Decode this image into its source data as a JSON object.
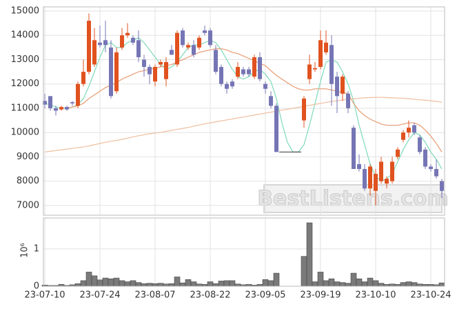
{
  "chart_data": {
    "type": "candlestick",
    "categories": [
      "23-07-10",
      null,
      null,
      null,
      null,
      null,
      null,
      null,
      null,
      null,
      "23-07-24",
      null,
      null,
      null,
      null,
      null,
      null,
      null,
      null,
      null,
      "23-08-07",
      null,
      null,
      null,
      null,
      null,
      null,
      null,
      null,
      null,
      "23-08-22",
      null,
      null,
      null,
      null,
      null,
      null,
      null,
      null,
      null,
      "23-09-05",
      null,
      null,
      null,
      null,
      null,
      null,
      null,
      null,
      null,
      "23-09-19",
      null,
      null,
      null,
      null,
      null,
      null,
      null,
      null,
      null,
      "23-10-10",
      null,
      null,
      null,
      null,
      null,
      null,
      null,
      null,
      null,
      "23-10-24",
      null,
      null
    ],
    "open": [
      11300,
      11500,
      11000,
      10950,
      11050,
      11250,
      11100,
      12000,
      12500,
      12800,
      13700,
      13800,
      13500,
      11700,
      13500,
      14000,
      13900,
      13800,
      13000,
      12700,
      12100,
      12800,
      12200,
      13400,
      12800,
      14200,
      13500,
      13600,
      13500,
      14200,
      14200,
      13400,
      12700,
      12000,
      12100,
      12300,
      12600,
      12600,
      12300,
      13100,
      12000,
      11500,
      11100,
      9200,
      9200,
      9200,
      9200,
      10500,
      12200,
      12600,
      12700,
      13300,
      13600,
      12300,
      11600,
      11600,
      10200,
      8700,
      8500,
      7700,
      7600,
      8000,
      7900,
      8000,
      9000,
      9700,
      10000,
      10300,
      9800,
      9300,
      8600,
      8500,
      8000
    ],
    "high": [
      11600,
      11500,
      11100,
      11100,
      11100,
      11300,
      12100,
      13000,
      14900,
      14300,
      14400,
      14600,
      13800,
      13500,
      14300,
      14500,
      14000,
      14200,
      13200,
      12800,
      12800,
      13000,
      13100,
      13600,
      14200,
      14300,
      13700,
      13800,
      14000,
      14400,
      14300,
      13600,
      12800,
      12100,
      12200,
      12900,
      12700,
      12700,
      13200,
      13300,
      12100,
      11700,
      11200,
      9200,
      9200,
      9200,
      9200,
      11500,
      13200,
      12900,
      14200,
      14200,
      14000,
      12500,
      12400,
      11700,
      10300,
      9100,
      8700,
      8700,
      8500,
      9000,
      8200,
      9000,
      9400,
      10100,
      10500,
      10400,
      9900,
      9400,
      8700,
      8900,
      8100
    ],
    "low": [
      11000,
      10900,
      10700,
      10900,
      10900,
      11100,
      11000,
      11900,
      12400,
      12700,
      13500,
      13300,
      11400,
      11600,
      13400,
      13900,
      13600,
      12900,
      12300,
      12000,
      11900,
      12700,
      11900,
      13200,
      12700,
      13500,
      13400,
      13100,
      13400,
      14000,
      13500,
      12400,
      11900,
      11600,
      11800,
      12200,
      12300,
      12300,
      12200,
      12100,
      11600,
      11000,
      9200,
      9200,
      9200,
      9200,
      9200,
      10200,
      12000,
      12500,
      12600,
      13200,
      11100,
      10800,
      11300,
      10800,
      8500,
      8400,
      7600,
      7400,
      7000,
      7900,
      7700,
      7900,
      8900,
      9600,
      9800,
      9900,
      9100,
      8500,
      8400,
      8100,
      7300
    ],
    "close": [
      11150,
      11000,
      10900,
      11050,
      10950,
      11200,
      12000,
      12500,
      14600,
      13800,
      13600,
      13600,
      11500,
      13300,
      14000,
      14100,
      13700,
      13100,
      12700,
      12400,
      12700,
      12900,
      12900,
      13200,
      14100,
      13600,
      13600,
      13200,
      13900,
      14100,
      13600,
      12500,
      12000,
      11800,
      11900,
      12700,
      12400,
      12400,
      13100,
      12200,
      11800,
      11100,
      9200,
      9200,
      9200,
      9200,
      9200,
      11400,
      12800,
      12650,
      13800,
      13700,
      12000,
      11500,
      12300,
      11000,
      8500,
      8500,
      7700,
      8600,
      8300,
      8800,
      8100,
      8800,
      9300,
      10000,
      10200,
      10000,
      9200,
      8600,
      8500,
      8200,
      7600
    ],
    "up_color": "#e0521f",
    "down_color": "#7575b5",
    "ylim": [
      6600,
      15170
    ],
    "yticks": [
      7000,
      8000,
      9000,
      10000,
      11000,
      12000,
      13000,
      14000,
      15000
    ],
    "grid": true,
    "series": [
      {
        "color": "#86dcbd",
        "values": [
          11200,
          11150,
          11050,
          11000,
          11000,
          11050,
          11150,
          11400,
          11900,
          12500,
          13100,
          13600,
          13700,
          13500,
          13500,
          13700,
          13800,
          13900,
          13700,
          13400,
          13100,
          12800,
          12600,
          12700,
          12900,
          13200,
          13500,
          13600,
          13600,
          13700,
          13800,
          13700,
          13400,
          13000,
          12600,
          12300,
          12200,
          12300,
          12500,
          12600,
          12400,
          12100,
          11400,
          10400,
          9600,
          9200,
          9200,
          9500,
          10300,
          11200,
          12100,
          12900,
          13000,
          12900,
          12500,
          12000,
          11300,
          10300,
          9500,
          8700,
          8200,
          8000,
          8100,
          8300,
          8800,
          9300,
          9700,
          10000,
          9900,
          9600,
          9200,
          8900,
          8500
        ]
      },
      {
        "color": "#e9a27c",
        "values": [
          null,
          null,
          null,
          null,
          11000,
          11050,
          11100,
          11200,
          11400,
          11550,
          11700,
          11850,
          11950,
          12050,
          12200,
          12300,
          12400,
          12500,
          12550,
          12600,
          12650,
          12700,
          12750,
          12800,
          12900,
          13000,
          13100,
          13200,
          13300,
          13350,
          13400,
          13450,
          13450,
          13400,
          13300,
          13250,
          13150,
          13050,
          12950,
          12850,
          12750,
          12550,
          12350,
          12200,
          12050,
          11900,
          11800,
          11750,
          11750,
          11800,
          11800,
          11800,
          11750,
          11700,
          11650,
          11600,
          11200,
          10900,
          10700,
          10550,
          10450,
          10350,
          10300,
          10300,
          10300,
          10350,
          10400,
          10400,
          10300,
          10100,
          9850,
          9550,
          9200
        ]
      },
      {
        "color": "#f0c2a4",
        "values": [
          9200,
          9230,
          9260,
          9290,
          9320,
          9350,
          9380,
          9410,
          9450,
          9500,
          9550,
          9600,
          9640,
          9680,
          9720,
          9770,
          9820,
          9870,
          9910,
          9950,
          9980,
          10010,
          10050,
          10090,
          10130,
          10170,
          10210,
          10260,
          10310,
          10360,
          10400,
          10440,
          10480,
          10520,
          10560,
          10600,
          10640,
          10680,
          10720,
          10760,
          10800,
          10840,
          10880,
          10920,
          10960,
          11000,
          11040,
          11080,
          11120,
          11160,
          11200,
          11240,
          11280,
          11310,
          11340,
          11370,
          11390,
          11410,
          11430,
          11440,
          11450,
          11450,
          11440,
          11430,
          11420,
          11410,
          11390,
          11370,
          11350,
          11330,
          11310,
          11280,
          11250
        ]
      }
    ],
    "volume": {
      "color": "#7a7a7a",
      "ylabel": "10⁶",
      "ylim": [
        0,
        1.83
      ],
      "yticks": [
        0,
        1
      ],
      "values": [
        0.03,
        0.02,
        0.02,
        0.05,
        0.02,
        0.04,
        0.07,
        0.15,
        0.38,
        0.28,
        0.17,
        0.22,
        0.2,
        0.22,
        0.15,
        0.12,
        0.15,
        0.1,
        0.07,
        0.08,
        0.07,
        0.08,
        0.06,
        0.07,
        0.25,
        0.09,
        0.18,
        0.12,
        0.06,
        0.05,
        0.12,
        0.07,
        0.14,
        0.15,
        0.15,
        0.06,
        0.04,
        0.05,
        0.03,
        0.05,
        0.18,
        0.15,
        0.35,
        0,
        0,
        0,
        0,
        0.8,
        1.7,
        0.12,
        0.38,
        0.15,
        0.2,
        0.12,
        0.1,
        0.08,
        0.35,
        0.2,
        0.12,
        0.22,
        0.15,
        0.08,
        0.05,
        0.06,
        0.05,
        0.1,
        0.12,
        0.1,
        0.06,
        0.05,
        0.05,
        0.04,
        0.09
      ]
    },
    "watermark": "BestListens.com"
  }
}
